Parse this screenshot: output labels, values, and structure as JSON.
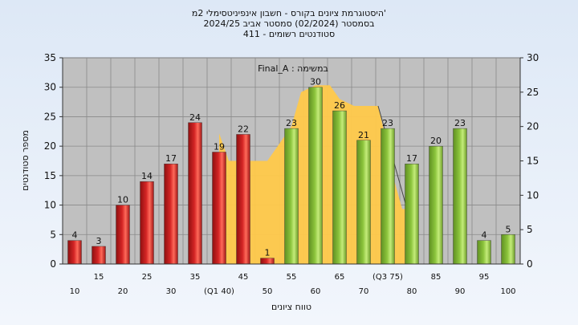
{
  "chart_data": {
    "type": "bar",
    "title_lines": [
      "היסטוגרמת ציונים בקורס - חשבון אינפיניטסימלי 2מ'",
      "בסמסטר  (02/2024)  סמסטר אביב 2024/25",
      "411 - סטודנטים רשומים"
    ],
    "annotation": "Final_A : במשימה",
    "xlabel": "טווח ציונים",
    "ylabel": "מספר סטודנטים",
    "ylim_left": [
      0,
      35
    ],
    "ylim_right": [
      0,
      30
    ],
    "yticks_left": [
      "0",
      "5",
      "10",
      "15",
      "20",
      "25",
      "30",
      "35"
    ],
    "yticks_right": [
      "0",
      "5",
      "10",
      "15",
      "20",
      "25",
      "30"
    ],
    "x_tick_labels": [
      "10",
      "15",
      "20",
      "25",
      "30",
      "35",
      "(Q1 40)",
      "45",
      "50",
      "55",
      "60",
      "65",
      "70",
      "(Q3 75)",
      "80",
      "85",
      "90",
      "95",
      "100"
    ],
    "categories": [
      "10",
      "15",
      "20",
      "25",
      "30",
      "35",
      "40",
      "45",
      "50",
      "55",
      "60",
      "65",
      "70",
      "75",
      "80",
      "85",
      "90",
      "95",
      "100"
    ],
    "values": [
      4,
      3,
      10,
      14,
      17,
      24,
      19,
      22,
      1,
      23,
      30,
      26,
      21,
      23,
      17,
      20,
      23,
      4,
      5
    ],
    "value_labels": [
      "4",
      "3",
      "10",
      "14",
      "17",
      "24",
      "19",
      "22",
      "1",
      "23",
      "30",
      "26",
      "21",
      "23",
      "17",
      "20",
      "23",
      "4",
      "5"
    ],
    "fail_threshold": 55,
    "colors": {
      "fail_bar": "#d42525",
      "pass_bar": "#8cc43c",
      "area": "#ffc94a",
      "plot_bg": "#c0c0c0",
      "grid": "#8a8a8a"
    },
    "area_series": {
      "x": [
        40,
        42,
        45,
        50,
        52,
        55,
        57,
        60,
        63,
        65,
        68,
        71,
        73,
        74,
        76,
        78,
        79
      ],
      "y": [
        19,
        15,
        15,
        15,
        17,
        20,
        25,
        26,
        26,
        24,
        23,
        23,
        23,
        20,
        13,
        8,
        8
      ]
    },
    "grid": true
  }
}
